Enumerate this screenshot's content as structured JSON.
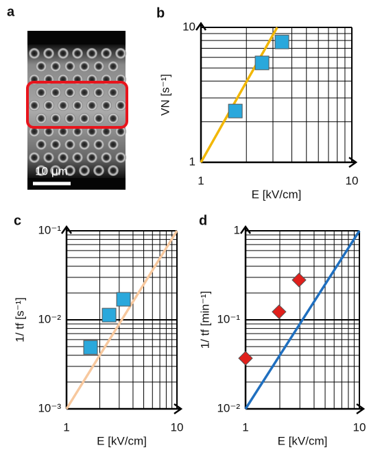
{
  "image_panel": {
    "panel_label": "a",
    "scale_bar": "10 μm"
  },
  "chart_data": [
    {
      "type": "scatter",
      "panel_label": "b",
      "xlabel": "E  [kV/cm]",
      "ylabel": "VN [s⁻¹]",
      "log_x": true,
      "log_y": true,
      "grid": true,
      "minor_grid": true,
      "xlim": [
        1,
        10
      ],
      "ylim": [
        1,
        10
      ],
      "xticks": [
        1,
        10
      ],
      "yticks": [
        1,
        10
      ],
      "points": {
        "x": [
          1.69,
          2.54,
          3.44
        ],
        "values": [
          2.4,
          5.45,
          7.8
        ],
        "color": "#2aa8dc",
        "marker": "square"
      },
      "fit_line": {
        "x": [
          1,
          3.2
        ],
        "values": [
          1,
          10
        ],
        "color": "#f2b705"
      }
    },
    {
      "type": "scatter",
      "panel_label": "c",
      "xlabel": "E  [kV/cm]",
      "ylabel": "1/ tf  [s⁻¹]",
      "log_x": true,
      "log_y": true,
      "grid": true,
      "minor_grid": true,
      "xlim": [
        1,
        10
      ],
      "ylim": [
        0.001,
        0.1
      ],
      "xticks": [
        1,
        10
      ],
      "yticks": [
        {
          "value": 0.001,
          "label": "10⁻³"
        },
        {
          "value": 0.01,
          "label": "10⁻²"
        },
        {
          "value": 0.1,
          "label": "10⁻¹"
        }
      ],
      "points": {
        "x": [
          1.65,
          2.43,
          3.28
        ],
        "values": [
          0.0049,
          0.0113,
          0.017
        ],
        "color": "#2aa8dc",
        "marker": "square"
      },
      "fit_line": {
        "x": [
          1,
          10
        ],
        "values": [
          0.001,
          0.1
        ],
        "color": "#f7c89e"
      }
    },
    {
      "type": "scatter",
      "panel_label": "d",
      "xlabel": "E  [kV/cm]",
      "ylabel": "1/ tf  [min⁻¹]",
      "log_x": true,
      "log_y": true,
      "grid": true,
      "minor_grid": true,
      "xlim": [
        1,
        10
      ],
      "ylim": [
        0.01,
        1
      ],
      "xticks": [
        1,
        10
      ],
      "yticks": [
        {
          "value": 0.01,
          "label": "10⁻²"
        },
        {
          "value": 0.1,
          "label": "10⁻¹"
        },
        1
      ],
      "points": {
        "x": [
          1,
          1.97,
          2.95
        ],
        "values": [
          0.037,
          0.123,
          0.28
        ],
        "color": "#e0201c",
        "marker": "diamond"
      },
      "fit_line": {
        "x": [
          1,
          10
        ],
        "values": [
          0.01,
          1
        ],
        "color": "#1f6fbf"
      }
    }
  ]
}
